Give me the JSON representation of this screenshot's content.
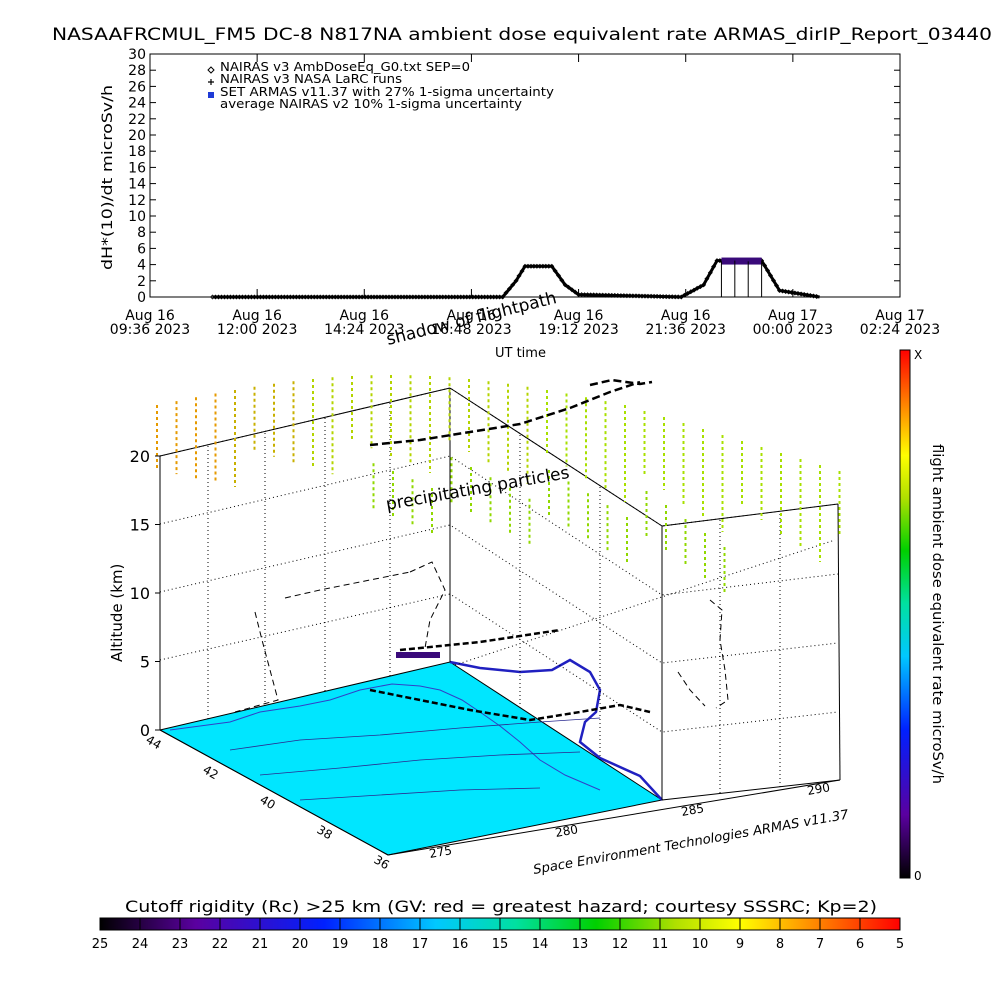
{
  "chart_data": [
    {
      "type": "line",
      "title": "NASAAFRCMUL_FM5 DC-8   N817NA ambient dose equivalent rate ARMAS_dirIP_Report_03440",
      "ylabel": "dH*(10)/dt microSv/h",
      "xlabel": "UT time",
      "ylim": [
        0,
        30
      ],
      "yticks": [
        "0",
        "2",
        "4",
        "6",
        "8",
        "10",
        "12",
        "14",
        "16",
        "18",
        "20",
        "22",
        "24",
        "26",
        "28",
        "30"
      ],
      "xticks": [
        {
          "line1": "Aug 16",
          "line2": "09:36 2023"
        },
        {
          "line1": "Aug 16",
          "line2": "12:00 2023"
        },
        {
          "line1": "Aug 16",
          "line2": "14:24 2023"
        },
        {
          "line1": "Aug 16",
          "line2": "16:48 2023"
        },
        {
          "line1": "Aug 16",
          "line2": "19:12 2023"
        },
        {
          "line1": "Aug 16",
          "line2": "21:36 2023"
        },
        {
          "line1": "Aug 17",
          "line2": "00:00 2023"
        },
        {
          "line1": "Aug 17",
          "line2": "02:24 2023"
        }
      ],
      "grid": false,
      "legend": "top-left",
      "legend_entries": [
        {
          "symbol": "diamond",
          "label": "NAIRAS v3 AmbDoseEq_G0.txt SEP=0"
        },
        {
          "symbol": "plus",
          "label": "NAIRAS v3 NASA LaRC runs"
        },
        {
          "symbol": "blue-square",
          "label": "SET ARMAS v11.37 with 27% 1-sigma uncertainty"
        },
        {
          "symbol": "none",
          "label": "average NAIRAS v2 10% 1-sigma uncertainty"
        }
      ],
      "series": [
        {
          "name": "NAIRAS v3 AmbDoseEq_G0.txt SEP=0",
          "color": "#000000",
          "x_hours": [
            11.0,
            17.5,
            17.8,
            18.0,
            18.6,
            18.9,
            19.2,
            21.5,
            22.0,
            22.3,
            23.3,
            23.7,
            24.6
          ],
          "values": [
            0.0,
            0.0,
            2.0,
            3.8,
            3.8,
            1.5,
            0.3,
            0.0,
            1.5,
            4.5,
            4.5,
            0.8,
            0.0
          ]
        },
        {
          "name": "SET ARMAS v11.37 with 27% 1-sigma uncertainty",
          "color": "#3a0a7a",
          "x_hours": [
            22.4,
            22.7,
            23.0,
            23.3
          ],
          "values": [
            4.4,
            4.5,
            4.4,
            4.5
          ]
        }
      ]
    },
    {
      "type": "scatter",
      "title": "",
      "zlabel": "Altitude (km)",
      "zticks": [
        "0",
        "5",
        "10",
        "15",
        "20"
      ],
      "lat_ticks": [
        "44",
        "42",
        "40",
        "38",
        "36"
      ],
      "lon_ticks": [
        "275",
        "280",
        "285",
        "290"
      ],
      "annotations": [
        "precipitating particles",
        "shadow of flightpath"
      ],
      "colorbar_label": "flight ambient dose equivalent rate microSv/h",
      "colorbar_top": "X",
      "colorbar_bottom": "0",
      "credit": "Space Environment Technologies ARMAS v11.37"
    },
    {
      "type": "heatmap",
      "title": "Cutoff rigidity (Rc) >25 km (GV: red = greatest hazard; courtesy SSSRC; Kp=2)",
      "ticks": [
        "25",
        "24",
        "23",
        "22",
        "21",
        "20",
        "19",
        "18",
        "17",
        "16",
        "15",
        "14",
        "13",
        "12",
        "11",
        "10",
        "9",
        "8",
        "7",
        "6",
        "5"
      ]
    }
  ]
}
